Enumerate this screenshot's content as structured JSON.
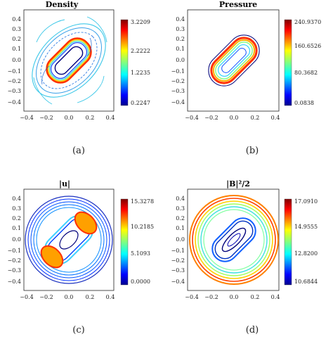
{
  "panels": [
    {
      "title": "Density",
      "caption": "(a)",
      "xticks": [
        "−0.4",
        "−0.2",
        "0.0",
        "0.2",
        "0.4"
      ],
      "yticks": [
        "0.4",
        "0.3",
        "0.2",
        "0.1",
        "0.0",
        "−0.1",
        "−0.2",
        "−0.3",
        "−0.4"
      ],
      "colorbar_ticks": [
        "3.2209",
        "2.2222",
        "1.2235",
        "0.2247"
      ]
    },
    {
      "title": "Pressure",
      "caption": "(b)",
      "xticks": [
        "−0.4",
        "−0.2",
        "0.0",
        "0.2",
        "0.4"
      ],
      "yticks": [
        "0.4",
        "0.3",
        "0.2",
        "0.1",
        "0.0",
        "−0.1",
        "−0.2",
        "−0.3",
        "−0.4"
      ],
      "colorbar_ticks": [
        "240.9370",
        "160.6526",
        "80.3682",
        "0.0838"
      ]
    },
    {
      "title": "|u|",
      "caption": "(c)",
      "xticks": [
        "−0.4",
        "−0.2",
        "0.0",
        "0.2",
        "0.4"
      ],
      "yticks": [
        "0.4",
        "0.3",
        "0.2",
        "0.1",
        "0.0",
        "−0.1",
        "−0.2",
        "−0.3",
        "−0.4"
      ],
      "colorbar_ticks": [
        "15.3278",
        "10.2185",
        "5.1093",
        "0.0000"
      ]
    },
    {
      "title": "|B|²/2",
      "caption": "(d)",
      "xticks": [
        "−0.4",
        "−0.2",
        "0.0",
        "0.2",
        "0.4"
      ],
      "yticks": [
        "0.4",
        "0.3",
        "0.2",
        "0.1",
        "0.0",
        "−0.1",
        "−0.2",
        "−0.3",
        "−0.4"
      ],
      "colorbar_ticks": [
        "17.0910",
        "14.9555",
        "12.8200",
        "10.6844"
      ]
    }
  ],
  "colors": {
    "jet": [
      "#00008f",
      "#0000ff",
      "#0080ff",
      "#00ffff",
      "#80ff80",
      "#ffff00",
      "#ff8000",
      "#ff0000",
      "#800000"
    ]
  }
}
